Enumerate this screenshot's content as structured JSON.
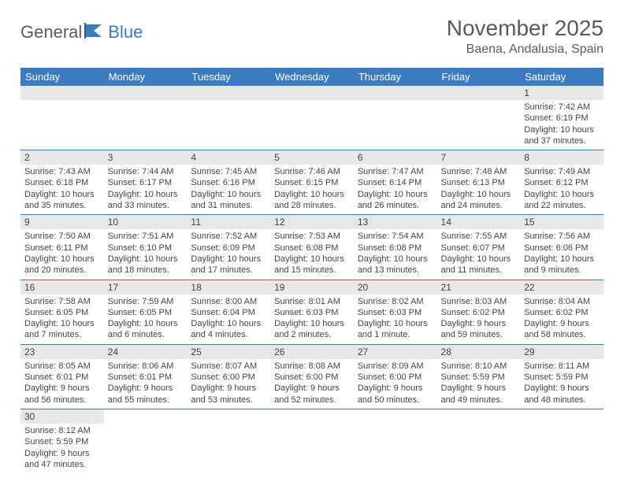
{
  "logo": {
    "part1": "General",
    "part2": "Blue"
  },
  "title": "November 2025",
  "location": "Baena, Andalusia, Spain",
  "colors": {
    "header_bg": "#3b7bbf",
    "header_text": "#ffffff",
    "daynum_bg": "#e8e8e8",
    "text": "#444444",
    "title_text": "#5a5a5a",
    "rule": "#3b7bbf"
  },
  "weekdays": [
    "Sunday",
    "Monday",
    "Tuesday",
    "Wednesday",
    "Thursday",
    "Friday",
    "Saturday"
  ],
  "weeks": [
    [
      null,
      null,
      null,
      null,
      null,
      null,
      {
        "n": "1",
        "sunrise": "7:42 AM",
        "sunset": "6:19 PM",
        "daylight": "10 hours and 37 minutes."
      }
    ],
    [
      {
        "n": "2",
        "sunrise": "7:43 AM",
        "sunset": "6:18 PM",
        "daylight": "10 hours and 35 minutes."
      },
      {
        "n": "3",
        "sunrise": "7:44 AM",
        "sunset": "6:17 PM",
        "daylight": "10 hours and 33 minutes."
      },
      {
        "n": "4",
        "sunrise": "7:45 AM",
        "sunset": "6:16 PM",
        "daylight": "10 hours and 31 minutes."
      },
      {
        "n": "5",
        "sunrise": "7:46 AM",
        "sunset": "6:15 PM",
        "daylight": "10 hours and 28 minutes."
      },
      {
        "n": "6",
        "sunrise": "7:47 AM",
        "sunset": "6:14 PM",
        "daylight": "10 hours and 26 minutes."
      },
      {
        "n": "7",
        "sunrise": "7:48 AM",
        "sunset": "6:13 PM",
        "daylight": "10 hours and 24 minutes."
      },
      {
        "n": "8",
        "sunrise": "7:49 AM",
        "sunset": "6:12 PM",
        "daylight": "10 hours and 22 minutes."
      }
    ],
    [
      {
        "n": "9",
        "sunrise": "7:50 AM",
        "sunset": "6:11 PM",
        "daylight": "10 hours and 20 minutes."
      },
      {
        "n": "10",
        "sunrise": "7:51 AM",
        "sunset": "6:10 PM",
        "daylight": "10 hours and 18 minutes."
      },
      {
        "n": "11",
        "sunrise": "7:52 AM",
        "sunset": "6:09 PM",
        "daylight": "10 hours and 17 minutes."
      },
      {
        "n": "12",
        "sunrise": "7:53 AM",
        "sunset": "6:08 PM",
        "daylight": "10 hours and 15 minutes."
      },
      {
        "n": "13",
        "sunrise": "7:54 AM",
        "sunset": "6:08 PM",
        "daylight": "10 hours and 13 minutes."
      },
      {
        "n": "14",
        "sunrise": "7:55 AM",
        "sunset": "6:07 PM",
        "daylight": "10 hours and 11 minutes."
      },
      {
        "n": "15",
        "sunrise": "7:56 AM",
        "sunset": "6:06 PM",
        "daylight": "10 hours and 9 minutes."
      }
    ],
    [
      {
        "n": "16",
        "sunrise": "7:58 AM",
        "sunset": "6:05 PM",
        "daylight": "10 hours and 7 minutes."
      },
      {
        "n": "17",
        "sunrise": "7:59 AM",
        "sunset": "6:05 PM",
        "daylight": "10 hours and 6 minutes."
      },
      {
        "n": "18",
        "sunrise": "8:00 AM",
        "sunset": "6:04 PM",
        "daylight": "10 hours and 4 minutes."
      },
      {
        "n": "19",
        "sunrise": "8:01 AM",
        "sunset": "6:03 PM",
        "daylight": "10 hours and 2 minutes."
      },
      {
        "n": "20",
        "sunrise": "8:02 AM",
        "sunset": "6:03 PM",
        "daylight": "10 hours and 1 minute."
      },
      {
        "n": "21",
        "sunrise": "8:03 AM",
        "sunset": "6:02 PM",
        "daylight": "9 hours and 59 minutes."
      },
      {
        "n": "22",
        "sunrise": "8:04 AM",
        "sunset": "6:02 PM",
        "daylight": "9 hours and 58 minutes."
      }
    ],
    [
      {
        "n": "23",
        "sunrise": "8:05 AM",
        "sunset": "6:01 PM",
        "daylight": "9 hours and 56 minutes."
      },
      {
        "n": "24",
        "sunrise": "8:06 AM",
        "sunset": "6:01 PM",
        "daylight": "9 hours and 55 minutes."
      },
      {
        "n": "25",
        "sunrise": "8:07 AM",
        "sunset": "6:00 PM",
        "daylight": "9 hours and 53 minutes."
      },
      {
        "n": "26",
        "sunrise": "8:08 AM",
        "sunset": "6:00 PM",
        "daylight": "9 hours and 52 minutes."
      },
      {
        "n": "27",
        "sunrise": "8:09 AM",
        "sunset": "6:00 PM",
        "daylight": "9 hours and 50 minutes."
      },
      {
        "n": "28",
        "sunrise": "8:10 AM",
        "sunset": "5:59 PM",
        "daylight": "9 hours and 49 minutes."
      },
      {
        "n": "29",
        "sunrise": "8:11 AM",
        "sunset": "5:59 PM",
        "daylight": "9 hours and 48 minutes."
      }
    ],
    [
      {
        "n": "30",
        "sunrise": "8:12 AM",
        "sunset": "5:59 PM",
        "daylight": "9 hours and 47 minutes."
      },
      null,
      null,
      null,
      null,
      null,
      null
    ]
  ],
  "labels": {
    "sunrise": "Sunrise:",
    "sunset": "Sunset:",
    "daylight": "Daylight:"
  }
}
